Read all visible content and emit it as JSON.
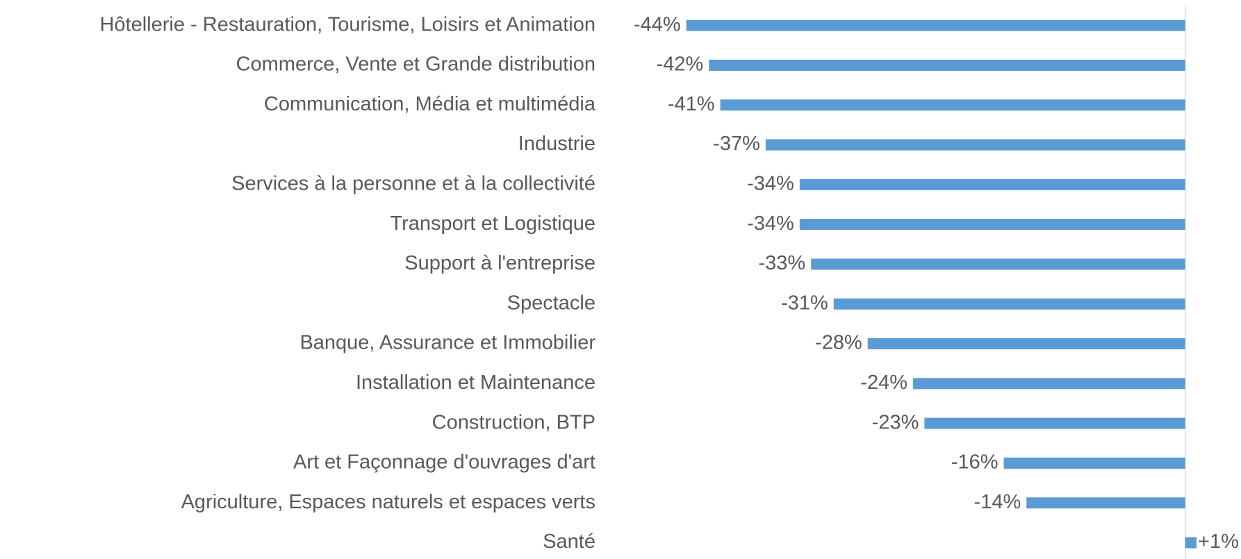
{
  "chart_data": {
    "type": "hbar",
    "categories": [
      "Hôtellerie - Restauration, Tourisme, Loisirs et Animation",
      "Commerce, Vente et Grande distribution",
      "Communication, Média et multimédia",
      "Industrie",
      "Services à la personne et à la collectivité",
      "Transport et Logistique",
      "Support à l'entreprise",
      "Spectacle",
      "Banque, Assurance et Immobilier",
      "Installation et Maintenance",
      "Construction, BTP",
      "Art et Façonnage d'ouvrages d'art",
      "Agriculture, Espaces naturels et espaces verts",
      "Santé"
    ],
    "values": [
      -44,
      -42,
      -41,
      -37,
      -34,
      -34,
      -33,
      -31,
      -28,
      -24,
      -23,
      -16,
      -14,
      1
    ],
    "value_labels": [
      "-44%",
      "-42%",
      "-41%",
      "-37%",
      "-34%",
      "-34%",
      "-33%",
      "-31%",
      "-28%",
      "-24%",
      "-23%",
      "-16%",
      "-14%",
      "+1%"
    ],
    "color": "#5b9bd5",
    "xlim": [
      -46,
      4
    ]
  }
}
